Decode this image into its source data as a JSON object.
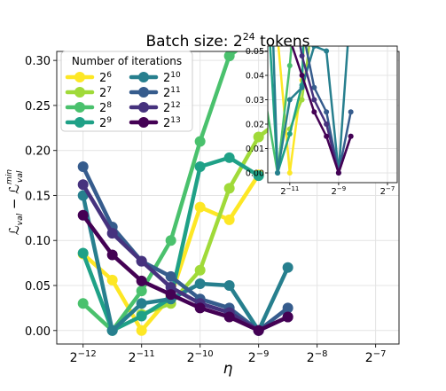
{
  "chart_data": {
    "type": "line",
    "title_base": "Batch size: 2",
    "title_exp": "24",
    "title_suffix": " tokens",
    "xlabel": "η",
    "ylabel": {
      "l": "ℒ",
      "sub1": "val",
      "minus": " − ℒ",
      "sup": "min",
      "sub2": "val"
    },
    "x_scale": "log2",
    "xlim_log2": [
      -12.45,
      -6.6
    ],
    "ylim": [
      -0.015,
      0.31
    ],
    "x_ticks": [
      {
        "base": "2",
        "exp": "−12",
        "v": -12
      },
      {
        "base": "2",
        "exp": "−11",
        "v": -11
      },
      {
        "base": "2",
        "exp": "−10",
        "v": -10
      },
      {
        "base": "2",
        "exp": "−9",
        "v": -9
      },
      {
        "base": "2",
        "exp": "−8",
        "v": -8
      },
      {
        "base": "2",
        "exp": "−7",
        "v": -7
      }
    ],
    "y_ticks": [
      "0.00",
      "0.05",
      "0.10",
      "0.15",
      "0.20",
      "0.25",
      "0.30"
    ],
    "grid": true,
    "legend": {
      "title": "Number of iterations",
      "placement": "top-left",
      "columns": 2
    },
    "x_log2": [
      -12,
      -11.5,
      -11,
      -10.5,
      -10,
      -9.5,
      -9,
      -8.5
    ],
    "series": [
      {
        "name_base": "2",
        "name_exp": "6",
        "color": "#fde725",
        "values": [
          0.085,
          0.056,
          0.0,
          0.038,
          0.137,
          0.123,
          0.173,
          null
        ]
      },
      {
        "name_base": "2",
        "name_exp": "7",
        "color": "#a0da39",
        "values": [
          null,
          null,
          0.018,
          0.03,
          0.067,
          0.158,
          0.215,
          0.24
        ]
      },
      {
        "name_base": "2",
        "name_exp": "8",
        "color": "#4ac16d",
        "values": [
          0.03,
          0.0,
          0.044,
          0.1,
          0.21,
          0.305,
          0.33,
          null
        ]
      },
      {
        "name_base": "2",
        "name_exp": "9",
        "color": "#1fa187",
        "values": [
          0.086,
          0.0,
          0.016,
          0.036,
          0.182,
          0.192,
          0.172,
          null
        ]
      },
      {
        "name_base": "2",
        "name_exp": "10",
        "color": "#277f8e",
        "values": [
          0.15,
          0.0,
          0.03,
          0.035,
          0.052,
          0.05,
          0.0,
          0.07
        ]
      },
      {
        "name_base": "2",
        "name_exp": "11",
        "color": "#365c8d",
        "values": [
          0.182,
          0.115,
          0.077,
          0.06,
          0.035,
          0.025,
          0.0,
          0.025
        ]
      },
      {
        "name_base": "2",
        "name_exp": "12",
        "color": "#46327e",
        "values": [
          0.162,
          0.108,
          0.077,
          0.048,
          0.03,
          0.02,
          0.0,
          0.015
        ]
      },
      {
        "name_base": "2",
        "name_exp": "13",
        "color": "#440154",
        "values": [
          0.128,
          0.084,
          0.055,
          0.04,
          0.025,
          0.015,
          0.0,
          0.015
        ]
      }
    ],
    "inset": {
      "xlim_log2": [
        -11.9,
        -6.6
      ],
      "ylim": [
        -0.004,
        0.052
      ],
      "x_ticks": [
        {
          "base": "2",
          "exp": "−11",
          "v": -11
        },
        {
          "base": "2",
          "exp": "−9",
          "v": -9
        },
        {
          "base": "2",
          "exp": "−7",
          "v": -7
        }
      ],
      "y_ticks": [
        "0.00",
        "0.01",
        "0.02",
        "0.03",
        "0.04",
        "0.05"
      ]
    }
  }
}
